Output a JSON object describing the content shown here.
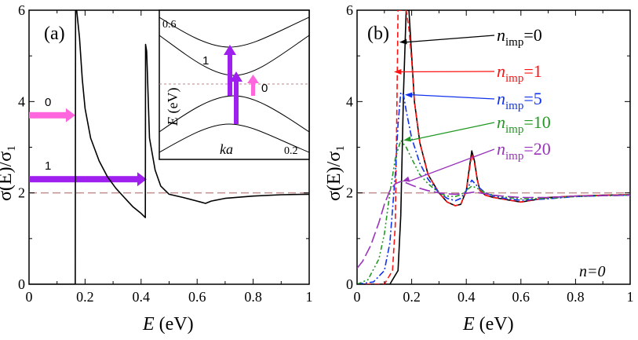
{
  "chart_data": [
    {
      "panel_label": "(a)",
      "type": "line",
      "xlabel_var": "E",
      "xlabel_unit": "(eV)",
      "ylabel_num": "σ(E)",
      "ylabel_den": "σ",
      "ylabel_den_sub": "1",
      "xlim": [
        0,
        1
      ],
      "ylim": [
        0,
        6
      ],
      "xticks": [
        "0",
        "0.2",
        "0.4",
        "0.6",
        "0.8",
        "1"
      ],
      "yticks": [
        "0",
        "2",
        "4",
        "6"
      ],
      "reference_line_y": 2,
      "series": [
        {
          "color": "#000000",
          "x": [
            0,
            0.165,
            0.166,
            0.17,
            0.18,
            0.19,
            0.2,
            0.22,
            0.25,
            0.28,
            0.31,
            0.34,
            0.37,
            0.4,
            0.415,
            0.416,
            0.42,
            0.43,
            0.45,
            0.47,
            0.5,
            0.55,
            0.6,
            0.63,
            0.65,
            0.7,
            0.8,
            0.9,
            1.0
          ],
          "y": [
            0,
            0,
            6.0,
            6.0,
            5.4,
            4.5,
            3.85,
            3.2,
            2.7,
            2.35,
            2.1,
            1.9,
            1.7,
            1.55,
            1.46,
            5.25,
            5.1,
            3.2,
            2.5,
            2.15,
            1.97,
            1.9,
            1.82,
            1.77,
            1.82,
            1.88,
            1.93,
            1.96,
            1.97
          ]
        }
      ],
      "annotations": [
        {
          "label": "0",
          "color": "#ff66dd",
          "y": 3.7,
          "x_start": 0,
          "x_end": 0.165
        },
        {
          "label": "1",
          "color": "#9f20ee",
          "y": 2.3,
          "x_start": 0,
          "x_end": 0.42
        }
      ],
      "inset": {
        "xlabel": "ka",
        "ylabel_var": "E",
        "ylabel_unit": "(eV)",
        "x_tick_label": "0.2",
        "y_tick_label": "0.6",
        "transitions": [
          {
            "label": "1",
            "color": "#9f20ee"
          },
          {
            "label": "0",
            "color": "#ff66dd"
          }
        ]
      }
    },
    {
      "panel_label": "(b)",
      "type": "line",
      "xlabel_var": "E",
      "xlabel_unit": "(eV)",
      "ylabel_num": "σ(E)",
      "ylabel_den": "σ",
      "ylabel_den_sub": "1",
      "xlim": [
        0,
        1
      ],
      "ylim": [
        0,
        6
      ],
      "xticks": [
        "0",
        "0.2",
        "0.4",
        "0.6",
        "0.8",
        "1"
      ],
      "yticks": [
        "0",
        "2",
        "4",
        "6"
      ],
      "reference_line_y": 2,
      "corner_label": "n=0",
      "series": [
        {
          "name": "nimp=0",
          "color": "#000000",
          "dash": "",
          "x": [
            0,
            0.12,
            0.15,
            0.16,
            0.17,
            0.18,
            0.19,
            0.2,
            0.21,
            0.23,
            0.26,
            0.3,
            0.33,
            0.36,
            0.38,
            0.4,
            0.41,
            0.42,
            0.43,
            0.44,
            0.45,
            0.47,
            0.5,
            0.55,
            0.6,
            0.65,
            0.7,
            0.8,
            0.9,
            1.0
          ],
          "y": [
            0,
            0,
            0.3,
            1.5,
            4.2,
            6.0,
            6.0,
            5.0,
            4.0,
            3.1,
            2.4,
            2.0,
            1.8,
            1.72,
            1.75,
            2.05,
            2.5,
            2.92,
            2.7,
            2.3,
            2.05,
            1.95,
            1.9,
            1.85,
            1.8,
            1.85,
            1.9,
            1.93,
            1.95,
            1.96
          ]
        },
        {
          "name": "nimp=1",
          "color": "#ff1111",
          "dash": "7,4",
          "x": [
            0,
            0.1,
            0.13,
            0.14,
            0.145,
            0.15,
            0.155,
            0.16,
            0.17,
            0.18,
            0.19,
            0.2,
            0.21,
            0.23,
            0.26,
            0.3,
            0.33,
            0.36,
            0.38,
            0.4,
            0.41,
            0.42,
            0.43,
            0.44,
            0.45,
            0.47,
            0.5,
            0.55,
            0.6,
            0.65,
            0.7,
            0.8,
            0.9,
            1.0
          ],
          "y": [
            0,
            0,
            0.3,
            1.3,
            3.5,
            6.0,
            6.0,
            6.0,
            6.0,
            6.0,
            5.6,
            4.9,
            4.0,
            3.1,
            2.4,
            2.0,
            1.8,
            1.72,
            1.75,
            2.05,
            2.45,
            2.85,
            2.65,
            2.3,
            2.05,
            1.95,
            1.9,
            1.85,
            1.8,
            1.85,
            1.9,
            1.93,
            1.95,
            1.96
          ]
        },
        {
          "name": "nimp=5",
          "color": "#1133ee",
          "dash": "8,3,2,3",
          "x": [
            0,
            0.06,
            0.1,
            0.12,
            0.14,
            0.15,
            0.16,
            0.17,
            0.18,
            0.2,
            0.23,
            0.26,
            0.3,
            0.33,
            0.36,
            0.38,
            0.4,
            0.42,
            0.44,
            0.47,
            0.5,
            0.55,
            0.6,
            0.7,
            0.8,
            0.9,
            1.0
          ],
          "y": [
            0,
            0.05,
            0.3,
            0.9,
            2.4,
            3.5,
            4.2,
            4.15,
            3.8,
            3.2,
            2.65,
            2.3,
            2.0,
            1.88,
            1.83,
            1.88,
            2.05,
            2.28,
            2.15,
            2.0,
            1.93,
            1.87,
            1.84,
            1.87,
            1.92,
            1.94,
            1.95
          ]
        },
        {
          "name": "nimp=10",
          "color": "#229922",
          "dash": "6,3,2,3,2,3",
          "x": [
            0,
            0.04,
            0.08,
            0.1,
            0.12,
            0.14,
            0.16,
            0.18,
            0.2,
            0.23,
            0.26,
            0.3,
            0.33,
            0.36,
            0.38,
            0.4,
            0.42,
            0.44,
            0.47,
            0.5,
            0.55,
            0.6,
            0.7,
            0.8,
            0.9,
            1.0
          ],
          "y": [
            0,
            0.1,
            0.55,
            1.1,
            2.0,
            2.75,
            3.15,
            3.0,
            2.75,
            2.4,
            2.2,
            2.0,
            1.93,
            1.92,
            1.96,
            2.05,
            2.15,
            2.1,
            2.0,
            1.95,
            1.9,
            1.87,
            1.88,
            1.92,
            1.94,
            1.95
          ]
        },
        {
          "name": "nimp=20",
          "color": "#9933bb",
          "dash": "14,5",
          "x": [
            0,
            0.02,
            0.05,
            0.08,
            0.1,
            0.12,
            0.14,
            0.16,
            0.18,
            0.2,
            0.23,
            0.26,
            0.3,
            0.33,
            0.36,
            0.4,
            0.43,
            0.47,
            0.5,
            0.55,
            0.6,
            0.7,
            0.8,
            0.9,
            1.0
          ],
          "y": [
            0.35,
            0.5,
            0.85,
            1.35,
            1.75,
            2.05,
            2.2,
            2.25,
            2.22,
            2.17,
            2.1,
            2.05,
            2.0,
            1.98,
            1.97,
            1.99,
            2.02,
            1.98,
            1.95,
            1.92,
            1.9,
            1.9,
            1.93,
            1.94,
            1.95
          ]
        }
      ],
      "legend": [
        {
          "symbol": "n",
          "sub": "imp",
          "value": "=0",
          "color": "#000000"
        },
        {
          "symbol": "n",
          "sub": "imp",
          "value": "=1",
          "color": "#ff1111"
        },
        {
          "symbol": "n",
          "sub": "imp",
          "value": "=5",
          "color": "#1133ee"
        },
        {
          "symbol": "n",
          "sub": "imp",
          "value": "=10",
          "color": "#229922"
        },
        {
          "symbol": "n",
          "sub": "imp",
          "value": "=20",
          "color": "#9933bb"
        }
      ]
    }
  ]
}
